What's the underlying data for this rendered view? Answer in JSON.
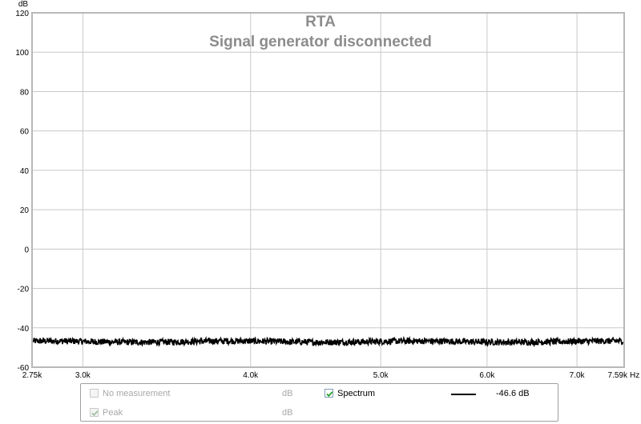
{
  "chart_data": {
    "type": "line",
    "title": "RTA",
    "subtitle": "Signal generator disconnected",
    "ylabel": "dB",
    "xlabel": "Hz",
    "xscale": "log",
    "xlim": [
      2750,
      7590
    ],
    "ylim": [
      -60,
      120
    ],
    "grid": true,
    "y_ticks": [
      {
        "value": -60,
        "label": "-60"
      },
      {
        "value": -40,
        "label": "-40"
      },
      {
        "value": -20,
        "label": "-20"
      },
      {
        "value": 0,
        "label": "0"
      },
      {
        "value": 20,
        "label": "20"
      },
      {
        "value": 40,
        "label": "40"
      },
      {
        "value": 60,
        "label": "60"
      },
      {
        "value": 80,
        "label": "80"
      },
      {
        "value": 100,
        "label": "100"
      },
      {
        "value": 120,
        "label": "120"
      }
    ],
    "x_ticks": [
      {
        "value": 2750,
        "label": "2.75k"
      },
      {
        "value": 3000,
        "label": "3.0k"
      },
      {
        "value": 4000,
        "label": "4.0k"
      },
      {
        "value": 5000,
        "label": "5.0k"
      },
      {
        "value": 6000,
        "label": "6.0k"
      },
      {
        "value": 7000,
        "label": "7.0k"
      },
      {
        "value": 7590,
        "label": "7.59k"
      }
    ],
    "series": [
      {
        "name": "Spectrum",
        "color": "#000000",
        "mean": -47,
        "noise": 1.6
      }
    ]
  },
  "legend": {
    "rows": [
      {
        "label": "No measurement",
        "unit": "dB",
        "checked": false,
        "enabled": false
      },
      {
        "label": "Peak",
        "unit": "dB",
        "checked": true,
        "enabled": false
      }
    ],
    "spectrum": {
      "label": "Spectrum",
      "unit": "dB",
      "checked": true,
      "value": "-46.6 dB",
      "color": "#000000"
    }
  }
}
